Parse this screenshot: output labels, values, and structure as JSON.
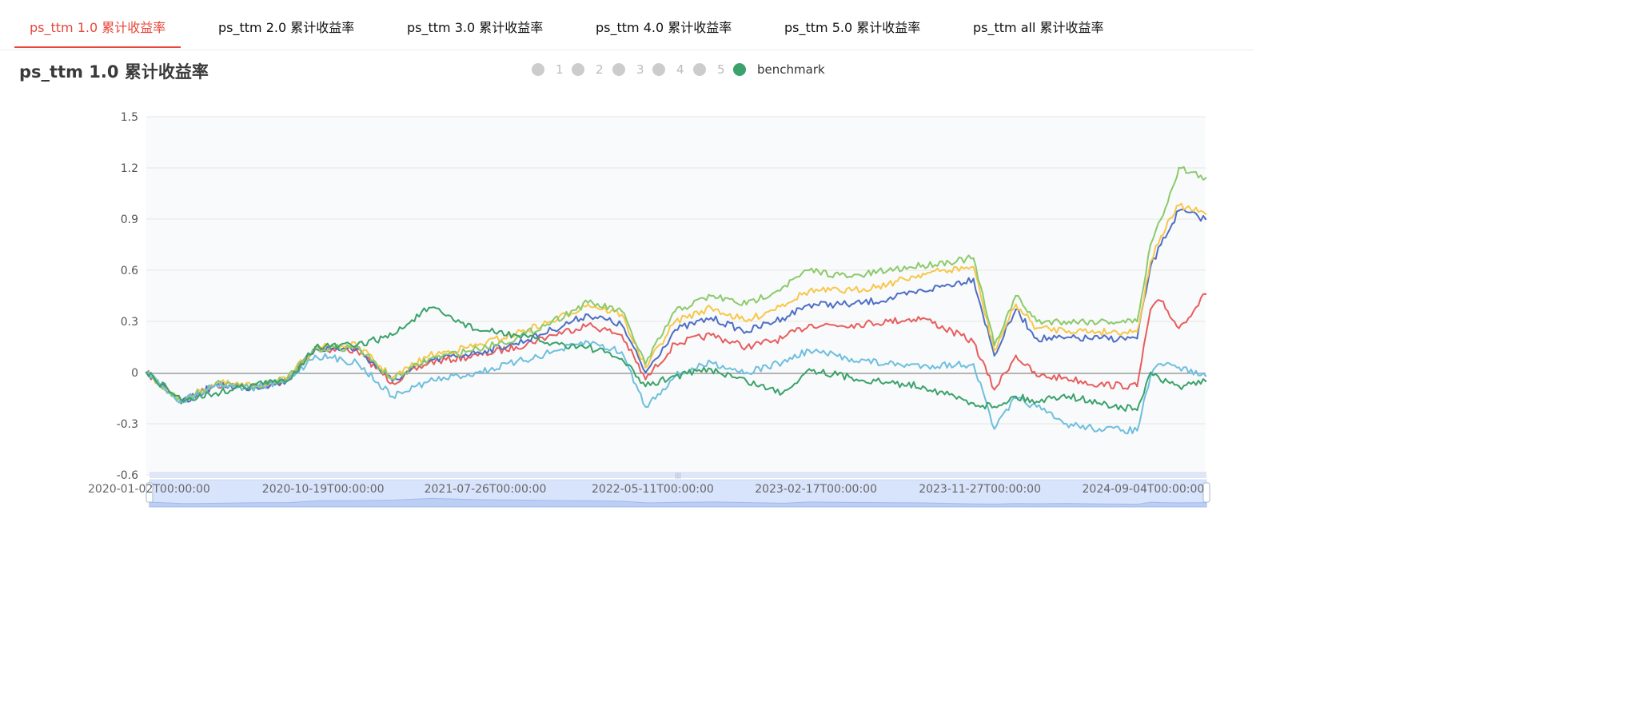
{
  "tabs": [
    {
      "label": "ps_ttm 1.0 累计收益率",
      "active": true
    },
    {
      "label": "ps_ttm 2.0 累计收益率",
      "active": false
    },
    {
      "label": "ps_ttm 3.0 累计收益率",
      "active": false
    },
    {
      "label": "ps_ttm 4.0 累计收益率",
      "active": false
    },
    {
      "label": "ps_ttm 5.0 累计收益率",
      "active": false
    },
    {
      "label": "ps_ttm all 累计收益率",
      "active": false
    }
  ],
  "colors": {
    "accent": "#e8473b",
    "legend_inactive": "#cccccc"
  },
  "chart_data": {
    "type": "line",
    "title": "ps_ttm 1.0 累计收益率",
    "legend_position": "top-center",
    "y_ticks": [
      "1.5",
      "1.2",
      "0.9",
      "0.6",
      "0.3",
      "0",
      "-0.3",
      "-0.6"
    ],
    "ylim": [
      -0.6,
      1.5
    ],
    "grid": true,
    "x_ticks": [
      "2020-01-02T00:00:00",
      "2020-10-19T00:00:00",
      "2021-07-26T00:00:00",
      "2022-05-11T00:00:00",
      "2023-02-17T00:00:00",
      "2023-11-27T00:00:00",
      "2024-09-04T00:00:00"
    ],
    "x": [
      "2020-01-02",
      "2020-03-02",
      "2020-05-01",
      "2020-07-01",
      "2020-08-31",
      "2020-10-19",
      "2020-12-30",
      "2021-03-01",
      "2021-05-03",
      "2021-07-26",
      "2021-09-30",
      "2021-12-01",
      "2022-02-01",
      "2022-03-31",
      "2022-05-11",
      "2022-07-01",
      "2022-09-01",
      "2022-11-01",
      "2023-01-02",
      "2023-02-17",
      "2023-05-01",
      "2023-07-03",
      "2023-09-01",
      "2023-11-27",
      "2024-01-02",
      "2024-02-08",
      "2024-03-15",
      "2024-05-01",
      "2024-07-01",
      "2024-09-04",
      "2024-09-27",
      "2024-10-15",
      "2024-11-15",
      "2024-12-31"
    ],
    "series": [
      {
        "name": "1",
        "color": "#e85d5d",
        "legend_active": false,
        "values": [
          0.0,
          -0.17,
          -0.07,
          -0.09,
          -0.05,
          0.14,
          0.13,
          -0.06,
          0.06,
          0.1,
          0.15,
          0.22,
          0.28,
          0.22,
          -0.04,
          0.17,
          0.22,
          0.15,
          0.2,
          0.28,
          0.28,
          0.3,
          0.32,
          0.18,
          -0.1,
          0.1,
          -0.02,
          -0.03,
          -0.07,
          -0.08,
          0.37,
          0.42,
          0.26,
          0.46
        ]
      },
      {
        "name": "2",
        "color": "#4e6ec5",
        "legend_active": false,
        "values": [
          0.0,
          -0.18,
          -0.07,
          -0.09,
          -0.05,
          0.14,
          0.14,
          -0.05,
          0.07,
          0.12,
          0.17,
          0.25,
          0.34,
          0.28,
          0.0,
          0.25,
          0.32,
          0.24,
          0.32,
          0.4,
          0.4,
          0.43,
          0.48,
          0.55,
          0.1,
          0.37,
          0.2,
          0.2,
          0.2,
          0.2,
          0.62,
          0.75,
          0.95,
          0.9
        ]
      },
      {
        "name": "3",
        "color": "#f8c74a",
        "legend_active": false,
        "values": [
          0.0,
          -0.17,
          -0.06,
          -0.08,
          -0.04,
          0.15,
          0.16,
          -0.03,
          0.1,
          0.16,
          0.23,
          0.3,
          0.4,
          0.34,
          0.03,
          0.3,
          0.38,
          0.3,
          0.4,
          0.48,
          0.48,
          0.52,
          0.58,
          0.62,
          0.13,
          0.4,
          0.26,
          0.25,
          0.24,
          0.24,
          0.65,
          0.8,
          0.98,
          0.93
        ]
      },
      {
        "name": "4",
        "color": "#8cca6b",
        "legend_active": false,
        "values": [
          0.0,
          -0.17,
          -0.06,
          -0.08,
          -0.04,
          0.14,
          0.15,
          -0.04,
          0.08,
          0.14,
          0.2,
          0.3,
          0.41,
          0.36,
          0.05,
          0.36,
          0.45,
          0.4,
          0.5,
          0.6,
          0.56,
          0.6,
          0.63,
          0.67,
          0.16,
          0.45,
          0.3,
          0.3,
          0.3,
          0.3,
          0.75,
          0.9,
          1.2,
          1.14
        ]
      },
      {
        "name": "5",
        "color": "#6ebfde",
        "legend_active": false,
        "values": [
          0.0,
          -0.17,
          -0.07,
          -0.09,
          -0.05,
          0.1,
          0.06,
          -0.14,
          -0.05,
          0.0,
          0.06,
          0.12,
          0.18,
          0.12,
          -0.2,
          -0.02,
          0.06,
          0.0,
          0.06,
          0.13,
          0.08,
          0.05,
          0.04,
          0.05,
          -0.33,
          -0.15,
          -0.2,
          -0.3,
          -0.33,
          -0.34,
          -0.02,
          0.05,
          0.03,
          -0.02
        ]
      },
      {
        "name": "benchmark",
        "color": "#3aa26a",
        "legend_active": true,
        "values": [
          0.0,
          -0.16,
          -0.12,
          -0.07,
          -0.05,
          0.15,
          0.16,
          0.22,
          0.38,
          0.25,
          0.22,
          0.17,
          0.15,
          0.08,
          -0.08,
          -0.02,
          0.02,
          -0.05,
          -0.12,
          0.02,
          -0.03,
          -0.06,
          -0.08,
          -0.18,
          -0.2,
          -0.14,
          -0.17,
          -0.13,
          -0.18,
          -0.22,
          0.0,
          -0.05,
          -0.08,
          -0.05
        ]
      }
    ]
  }
}
